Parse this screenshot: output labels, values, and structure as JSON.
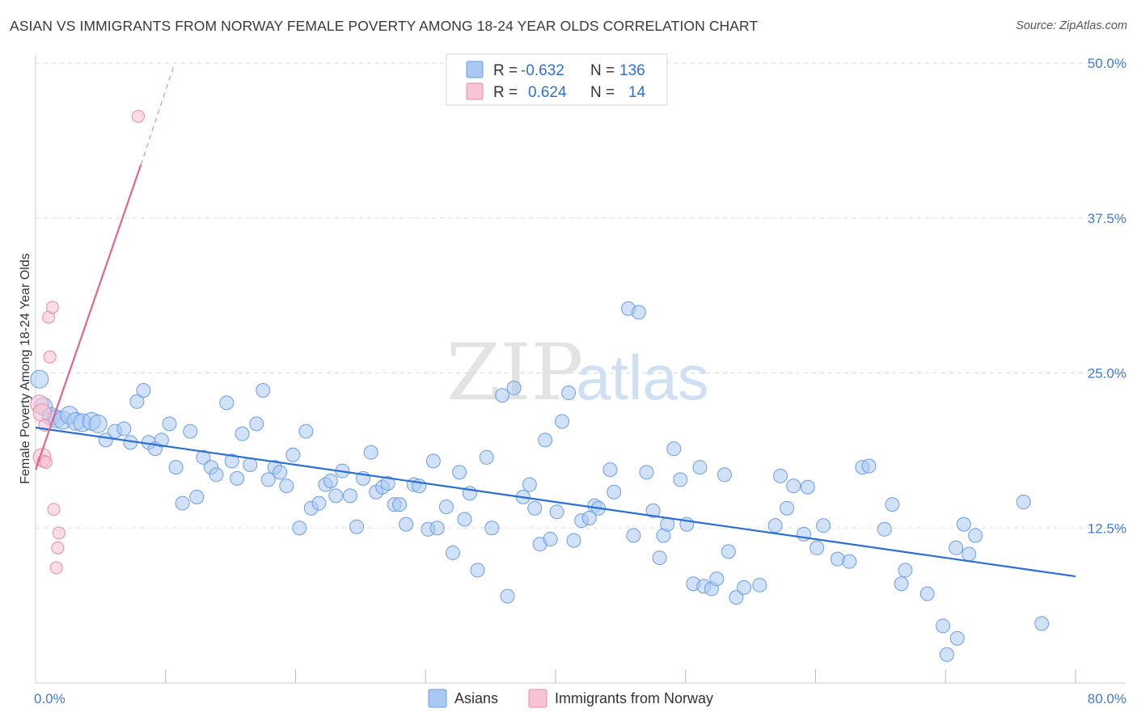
{
  "header": {
    "title": "ASIAN VS IMMIGRANTS FROM NORWAY FEMALE POVERTY AMONG 18-24 YEAR OLDS CORRELATION CHART",
    "source": "Source: ZipAtlas.com"
  },
  "watermark": {
    "zip": "ZIP",
    "atlas": "atlas"
  },
  "colors": {
    "asian_fill": "#a9c8f2",
    "asian_stroke": "#6a9ee6",
    "asian_line": "#2a6fd4",
    "norway_fill": "#f7c4d3",
    "norway_stroke": "#e88aa8",
    "norway_line": "#e2648f",
    "tick_text": "#3f7bd6"
  },
  "stats_legend": {
    "rows": [
      {
        "r_label": "R =",
        "r_value": "-0.632",
        "n_label": "N =",
        "n_value": "136"
      },
      {
        "r_label": "R =",
        "r_value": "0.624",
        "n_label": "N =",
        "n_value": "14"
      }
    ]
  },
  "chart_data": {
    "type": "scatter",
    "title": "ASIAN VS IMMIGRANTS FROM NORWAY FEMALE POVERTY AMONG 18-24 YEAR OLDS CORRELATION CHART",
    "xlabel": "",
    "ylabel": "Female Poverty Among 18-24 Year Olds",
    "xlim": [
      0,
      80
    ],
    "ylim": [
      0,
      50
    ],
    "x_tick_labels": [
      "0.0%",
      "80.0%"
    ],
    "y_ticks": [
      12.5,
      25.0,
      37.5,
      50.0
    ],
    "y_tick_labels": [
      "12.5%",
      "25.0%",
      "37.5%",
      "50.0%"
    ],
    "grid": true,
    "legend": [
      "Asians",
      "Immigrants from Norway"
    ],
    "series": [
      {
        "name": "Asians",
        "r": -0.632,
        "n": 136,
        "trend": {
          "x": [
            0,
            80
          ],
          "y": [
            20.6,
            8.6
          ]
        },
        "points": [
          [
            0.3,
            24.5
          ],
          [
            0.6,
            22.3
          ],
          [
            1.2,
            21.5
          ],
          [
            1.6,
            21.3
          ],
          [
            2.1,
            21.2
          ],
          [
            2.6,
            21.6
          ],
          [
            3.1,
            21.1
          ],
          [
            3.6,
            21.0
          ],
          [
            4.3,
            21.1
          ],
          [
            4.8,
            20.9
          ],
          [
            5.4,
            19.6
          ],
          [
            6.1,
            20.3
          ],
          [
            6.8,
            20.5
          ],
          [
            7.3,
            19.4
          ],
          [
            7.8,
            22.7
          ],
          [
            8.3,
            23.6
          ],
          [
            8.7,
            19.4
          ],
          [
            9.2,
            18.9
          ],
          [
            9.7,
            19.6
          ],
          [
            10.3,
            20.9
          ],
          [
            10.8,
            17.4
          ],
          [
            11.3,
            14.5
          ],
          [
            11.9,
            20.3
          ],
          [
            12.4,
            15.0
          ],
          [
            12.9,
            18.2
          ],
          [
            13.5,
            17.4
          ],
          [
            13.9,
            16.8
          ],
          [
            14.7,
            22.6
          ],
          [
            15.1,
            17.9
          ],
          [
            15.5,
            16.5
          ],
          [
            15.9,
            20.1
          ],
          [
            16.5,
            17.6
          ],
          [
            17.0,
            20.9
          ],
          [
            17.5,
            23.6
          ],
          [
            17.9,
            16.4
          ],
          [
            18.4,
            17.4
          ],
          [
            18.8,
            17.0
          ],
          [
            19.3,
            15.9
          ],
          [
            19.8,
            18.4
          ],
          [
            20.3,
            12.5
          ],
          [
            20.8,
            20.3
          ],
          [
            21.2,
            14.1
          ],
          [
            21.8,
            14.5
          ],
          [
            22.3,
            16.0
          ],
          [
            22.7,
            16.3
          ],
          [
            23.1,
            15.1
          ],
          [
            23.6,
            17.1
          ],
          [
            24.2,
            15.1
          ],
          [
            24.7,
            12.6
          ],
          [
            25.2,
            16.5
          ],
          [
            25.8,
            18.6
          ],
          [
            26.2,
            15.4
          ],
          [
            26.7,
            15.8
          ],
          [
            27.1,
            16.1
          ],
          [
            27.6,
            14.4
          ],
          [
            28.0,
            14.4
          ],
          [
            28.5,
            12.8
          ],
          [
            29.1,
            16.0
          ],
          [
            29.5,
            15.9
          ],
          [
            30.2,
            12.4
          ],
          [
            30.6,
            17.9
          ],
          [
            30.9,
            12.5
          ],
          [
            31.6,
            14.2
          ],
          [
            32.1,
            10.5
          ],
          [
            32.6,
            17.0
          ],
          [
            33.0,
            13.2
          ],
          [
            33.4,
            15.3
          ],
          [
            34.0,
            9.1
          ],
          [
            34.7,
            18.2
          ],
          [
            35.1,
            12.5
          ],
          [
            35.9,
            23.2
          ],
          [
            36.3,
            7.0
          ],
          [
            36.8,
            23.8
          ],
          [
            37.5,
            15.0
          ],
          [
            38.0,
            16.0
          ],
          [
            38.4,
            14.1
          ],
          [
            38.8,
            11.2
          ],
          [
            39.2,
            19.6
          ],
          [
            39.6,
            11.6
          ],
          [
            40.1,
            13.8
          ],
          [
            40.5,
            21.1
          ],
          [
            41.0,
            23.4
          ],
          [
            41.4,
            11.5
          ],
          [
            42.0,
            13.1
          ],
          [
            42.6,
            13.3
          ],
          [
            43.0,
            14.3
          ],
          [
            43.3,
            14.1
          ],
          [
            44.2,
            17.2
          ],
          [
            44.5,
            15.4
          ],
          [
            45.6,
            30.2
          ],
          [
            46.0,
            11.9
          ],
          [
            46.4,
            29.9
          ],
          [
            47.0,
            17.0
          ],
          [
            47.5,
            13.9
          ],
          [
            48.0,
            10.1
          ],
          [
            48.3,
            11.9
          ],
          [
            48.6,
            12.8
          ],
          [
            49.1,
            18.9
          ],
          [
            49.6,
            16.4
          ],
          [
            50.1,
            12.8
          ],
          [
            50.6,
            8.0
          ],
          [
            51.1,
            17.4
          ],
          [
            51.4,
            7.8
          ],
          [
            52.0,
            7.6
          ],
          [
            52.4,
            8.4
          ],
          [
            53.0,
            16.8
          ],
          [
            53.3,
            10.6
          ],
          [
            53.9,
            6.9
          ],
          [
            54.5,
            7.7
          ],
          [
            55.7,
            7.9
          ],
          [
            56.9,
            12.7
          ],
          [
            57.3,
            16.7
          ],
          [
            57.8,
            14.1
          ],
          [
            58.3,
            15.9
          ],
          [
            59.1,
            12.0
          ],
          [
            59.4,
            15.8
          ],
          [
            60.1,
            10.9
          ],
          [
            60.6,
            12.7
          ],
          [
            61.7,
            10.0
          ],
          [
            62.6,
            9.8
          ],
          [
            63.6,
            17.4
          ],
          [
            64.1,
            17.5
          ],
          [
            65.3,
            12.4
          ],
          [
            65.9,
            14.4
          ],
          [
            66.6,
            8.0
          ],
          [
            66.9,
            9.1
          ],
          [
            68.6,
            7.2
          ],
          [
            69.8,
            4.6
          ],
          [
            70.1,
            2.3
          ],
          [
            70.9,
            3.6
          ],
          [
            71.4,
            12.8
          ],
          [
            71.8,
            10.4
          ],
          [
            72.3,
            11.9
          ],
          [
            76.0,
            14.6
          ],
          [
            77.4,
            4.8
          ],
          [
            70.8,
            10.9
          ]
        ]
      },
      {
        "name": "Immigrants from Norway",
        "r": 0.624,
        "n": 14,
        "trend": {
          "x": [
            0,
            8.1
          ],
          "y": [
            17.2,
            41.8
          ],
          "dashed_to": {
            "x": [
              8.1,
              10.7
            ],
            "y": [
              41.8,
              50.0
            ]
          }
        },
        "points": [
          [
            0.3,
            22.5
          ],
          [
            0.5,
            21.8
          ],
          [
            0.5,
            18.2
          ],
          [
            0.6,
            17.9
          ],
          [
            0.7,
            20.8
          ],
          [
            0.8,
            17.8
          ],
          [
            1.0,
            29.5
          ],
          [
            1.1,
            26.3
          ],
          [
            1.3,
            30.3
          ],
          [
            1.4,
            14.0
          ],
          [
            1.6,
            9.3
          ],
          [
            1.7,
            10.9
          ],
          [
            1.8,
            12.1
          ],
          [
            7.9,
            45.7
          ]
        ]
      }
    ]
  },
  "bottom_legend": {
    "items": [
      {
        "label": "Asians"
      },
      {
        "label": "Immigrants from Norway"
      }
    ]
  }
}
